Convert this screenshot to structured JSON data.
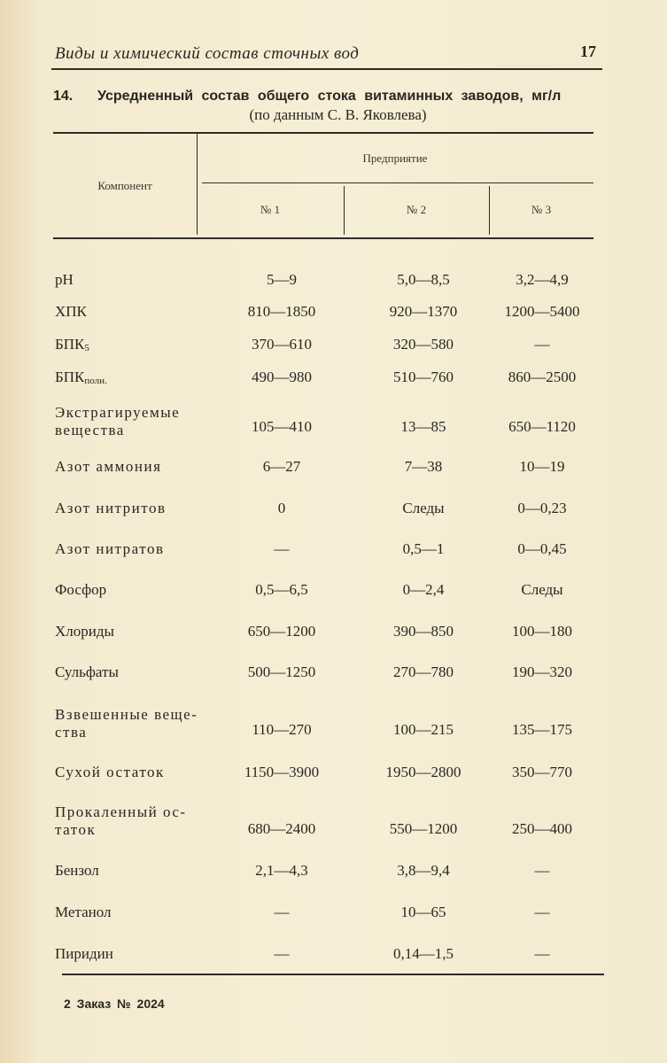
{
  "page": {
    "running_head": "Виды и химический состав сточных вод",
    "page_number": "17",
    "footer": "2 Заказ № 2024"
  },
  "table": {
    "number": "14.",
    "title": "Усредненный состав общего стока витаминных заводов, мг/л",
    "subtitle": "(по данным С. В. Яковлева)",
    "header": {
      "component": "Компонент",
      "group": "Предприятие",
      "columns": [
        "№ 1",
        "№ 2",
        "№ 3"
      ]
    },
    "rows": [
      {
        "component": "pH",
        "values": [
          "5—9",
          "5,0—8,5",
          "3,2—4,9"
        ]
      },
      {
        "component": "ХПК",
        "values": [
          "810—1850",
          "920—1370",
          "1200—5400"
        ]
      },
      {
        "component": "БПК",
        "sub": "5",
        "values": [
          "370—610",
          "320—580",
          "—"
        ]
      },
      {
        "component": "БПК",
        "sub": "полн.",
        "values": [
          "490—980",
          "510—760",
          "860—2500"
        ]
      },
      {
        "component": "Экстрагируемые вещества",
        "values": [
          "105—410",
          "13—85",
          "650—1120"
        ]
      },
      {
        "component": "Азот аммония",
        "values": [
          "6—27",
          "7—38",
          "10—19"
        ]
      },
      {
        "component": "Азот нитритов",
        "values": [
          "0",
          "Следы",
          "0—0,23"
        ]
      },
      {
        "component": "Азот нитратов",
        "values": [
          "—",
          "0,5—1",
          "0—0,45"
        ]
      },
      {
        "component": "Фосфор",
        "values": [
          "0,5—6,5",
          "0—2,4",
          "Следы"
        ]
      },
      {
        "component": "Хлориды",
        "values": [
          "650—1200",
          "390—850",
          "100—180"
        ]
      },
      {
        "component": "Сульфаты",
        "values": [
          "500—1250",
          "270—780",
          "190—320"
        ]
      },
      {
        "component": "Взвешенные веще-ства",
        "values": [
          "110—270",
          "100—215",
          "135—175"
        ]
      },
      {
        "component": "Сухой остаток",
        "values": [
          "1150—3900",
          "1950—2800",
          "350—770"
        ]
      },
      {
        "component": "Прокаленный ос-таток",
        "values": [
          "680—2400",
          "550—1200",
          "250—400"
        ]
      },
      {
        "component": "Бензол",
        "values": [
          "2,1—4,3",
          "3,8—9,4",
          "—"
        ]
      },
      {
        "component": "Метанол",
        "values": [
          "—",
          "10—65",
          "—"
        ]
      },
      {
        "component": "Пиридин",
        "values": [
          "—",
          "0,14—1,5",
          "—"
        ]
      }
    ]
  }
}
